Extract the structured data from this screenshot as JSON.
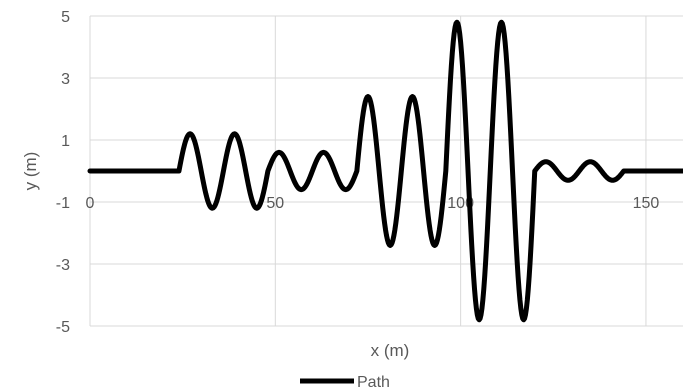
{
  "chart_data": {
    "type": "line",
    "xlabel": "x (m)",
    "ylabel": "y (m)",
    "xlim": [
      0,
      160
    ],
    "ylim": [
      -5,
      5
    ],
    "x_ticks": [
      0,
      50,
      100,
      150
    ],
    "y_ticks": [
      -5,
      -3,
      -1,
      1,
      3,
      5
    ],
    "grid": "on",
    "legend_position": "bottom",
    "series": [
      {
        "name": "Path",
        "color": "#000000",
        "segments": [
          {
            "x_start": 0,
            "x_end": 24,
            "amplitude": 0,
            "period": 12
          },
          {
            "x_start": 24,
            "x_end": 48,
            "amplitude": 1.2,
            "period": 12
          },
          {
            "x_start": 48,
            "x_end": 72,
            "amplitude": 0.6,
            "period": 12
          },
          {
            "x_start": 72,
            "x_end": 96,
            "amplitude": 2.4,
            "period": 12
          },
          {
            "x_start": 96,
            "x_end": 120,
            "amplitude": 4.8,
            "period": 12
          },
          {
            "x_start": 120,
            "x_end": 144,
            "amplitude": 0.3,
            "period": 12
          },
          {
            "x_start": 144,
            "x_end": 160,
            "amplitude": 0,
            "period": 12
          }
        ]
      }
    ]
  }
}
